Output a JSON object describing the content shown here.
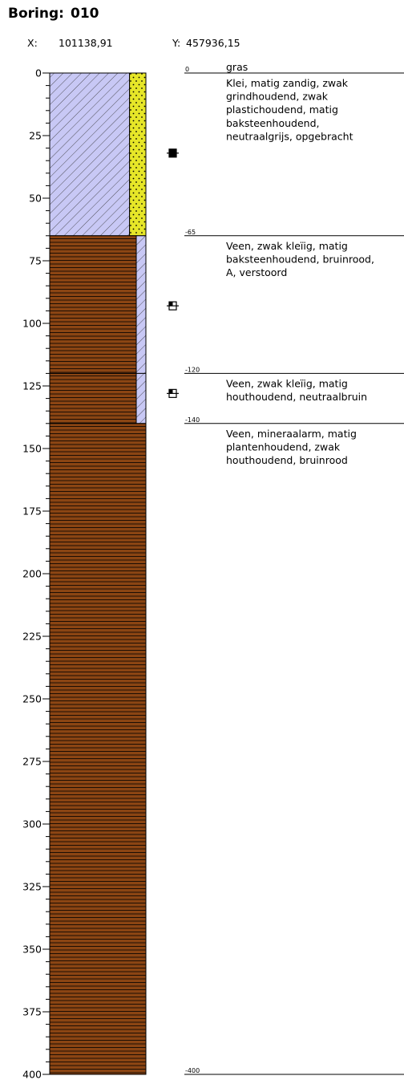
{
  "header": {
    "title": "Boring:",
    "id": "010",
    "x_label": "X:",
    "x_value": "101138,91",
    "y_label": "Y:",
    "y_value": "457936,15"
  },
  "depth_axis": {
    "lim": [
      0,
      400
    ],
    "ticks": [
      0,
      25,
      50,
      75,
      100,
      125,
      150,
      175,
      200,
      225,
      250,
      275,
      300,
      325,
      350,
      375,
      400
    ]
  },
  "layers": [
    {
      "top": 0,
      "bottom": 65,
      "main": {
        "color": "#c8c8f5",
        "pattern": "hatch"
      },
      "side": {
        "color": "#e6e628",
        "pattern": "dots"
      },
      "split": 0.83
    },
    {
      "top": 65,
      "bottom": 120,
      "main": {
        "color": "#8b4513",
        "pattern": "lines"
      },
      "side": {
        "color": "#c8c8f5",
        "pattern": "hatch"
      },
      "split": 0.9
    },
    {
      "top": 120,
      "bottom": 140,
      "main": {
        "color": "#8b4513",
        "pattern": "lines"
      },
      "side": {
        "color": "#c8c8f5",
        "pattern": "hatch"
      },
      "split": 0.9
    },
    {
      "top": 140,
      "bottom": 400,
      "main": {
        "color": "#8b4513",
        "pattern": "lines"
      }
    }
  ],
  "surface_label": "gras",
  "boundaries": [
    {
      "depth": 0,
      "label": "0",
      "description": [
        "Klei, matig zandig, zwak",
        "grindhoudend, zwak",
        "plastichoudend, matig",
        "baksteenhoudend,",
        "neutraalgrijs, opgebracht"
      ]
    },
    {
      "depth": 65,
      "label": "-65",
      "description": [
        "Veen, zwak kleïig, matig",
        "baksteenhoudend, bruinrood,",
        "A, verstoord"
      ]
    },
    {
      "depth": 120,
      "label": "-120",
      "description": [
        "Veen, zwak kleïig, matig",
        "houthoudend, neutraalbruin"
      ]
    },
    {
      "depth": 140,
      "label": "-140",
      "description": [
        "Veen, mineraalarm, matig",
        "plantenhoudend, zwak",
        "houthoudend, bruinrood"
      ]
    },
    {
      "depth": 400,
      "label": "-400",
      "description": []
    }
  ],
  "samples": [
    {
      "depth": 32,
      "filled": true
    },
    {
      "depth": 93,
      "filled": false
    },
    {
      "depth": 128,
      "filled": false
    }
  ]
}
